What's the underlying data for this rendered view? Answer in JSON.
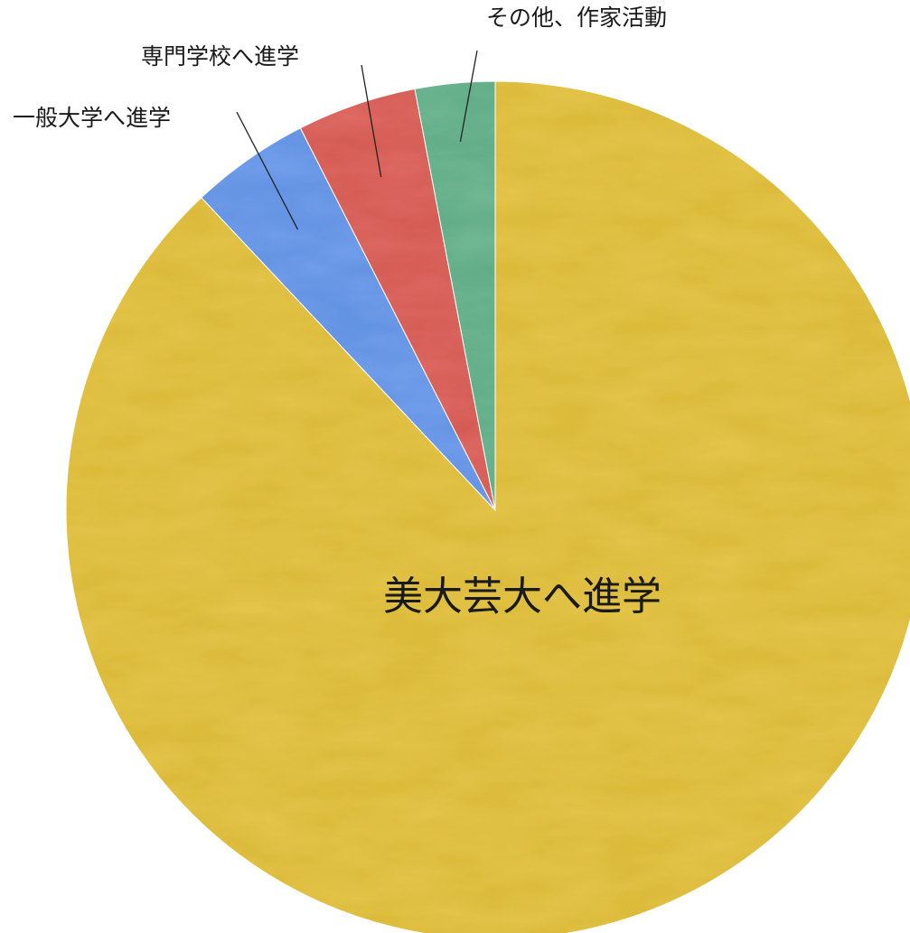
{
  "chart_data": {
    "type": "pie",
    "title": "",
    "start": "top",
    "direction": "counterclockwise",
    "legend": "none",
    "slices": [
      {
        "label": "美大芸大へ進学",
        "value": 88.0,
        "color": "#d9b72a",
        "label_placement": "inside"
      },
      {
        "label": "一般大学へ進学",
        "value": 4.5,
        "color": "#5b8ee0",
        "label_placement": "outside"
      },
      {
        "label": "専門学校へ進学",
        "value": 4.5,
        "color": "#d2524a",
        "label_placement": "outside"
      },
      {
        "label": "その他、作家活動",
        "value": 3.0,
        "color": "#5aa882",
        "label_placement": "outside"
      }
    ]
  }
}
